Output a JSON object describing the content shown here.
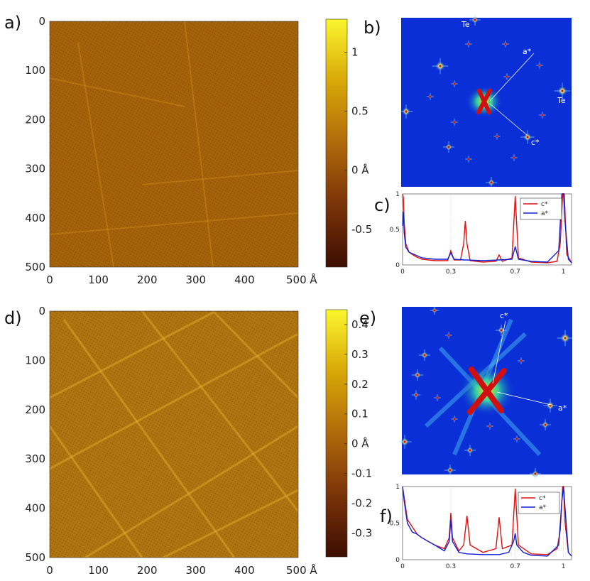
{
  "panels": {
    "a": {
      "label": "a)",
      "y_ticks": [
        "0",
        "100",
        "200",
        "300",
        "400",
        "500"
      ],
      "x_ticks": [
        "0",
        "100",
        "200",
        "300",
        "400",
        "500 Å"
      ],
      "colorbar_ticks": [
        "1",
        "0.5",
        "0 Å",
        "-0.5"
      ],
      "colorbar_values": [
        1,
        0.5,
        0,
        -0.5
      ],
      "colorbar_range": [
        -0.82,
        1.28
      ]
    },
    "b": {
      "label": "b)",
      "annotations": [
        "Te",
        "a*",
        "Te",
        "c*"
      ]
    },
    "c": {
      "label": "c)",
      "x_ticks": [
        "0",
        "0.3",
        "0.7",
        "1"
      ],
      "y_ticks": [
        "1",
        "0.5",
        "0"
      ],
      "legend": [
        "c*",
        "a*"
      ]
    },
    "d": {
      "label": "d)",
      "y_ticks": [
        "0",
        "100",
        "200",
        "300",
        "400",
        "500"
      ],
      "x_ticks": [
        "0",
        "100",
        "200",
        "300",
        "400",
        "500 Å"
      ],
      "colorbar_ticks": [
        "0.4",
        "0.3",
        "0.2",
        "0.1",
        "0 Å",
        "-0.1",
        "-0.2",
        "-0.3"
      ],
      "colorbar_values": [
        0.4,
        0.3,
        0.2,
        0.1,
        0,
        -0.1,
        -0.2,
        -0.3
      ],
      "colorbar_range": [
        -0.38,
        0.45
      ]
    },
    "e": {
      "label": "e)",
      "annotations": [
        "c*",
        "a*"
      ]
    },
    "f": {
      "label": "f)",
      "x_ticks": [
        "0",
        "0.3",
        "0.7",
        "1"
      ],
      "y_ticks": [
        "1",
        "0.5",
        "0"
      ],
      "legend": [
        "c*",
        "a*"
      ]
    }
  },
  "colors": {
    "series_c": "#e01010",
    "series_a": "#1020d0",
    "fft_bg": "#0a2fd6",
    "stm_mid": "#a8650c"
  },
  "chart_data": [
    {
      "type": "line",
      "panel": "c",
      "xlim": [
        0,
        1.05
      ],
      "ylim": [
        0,
        1
      ],
      "grid_x": [
        0.3,
        0.7,
        1
      ],
      "series": [
        {
          "name": "c*",
          "x": [
            0.0,
            0.005,
            0.01,
            0.02,
            0.04,
            0.08,
            0.12,
            0.2,
            0.28,
            0.3,
            0.32,
            0.36,
            0.38,
            0.39,
            0.4,
            0.42,
            0.5,
            0.58,
            0.6,
            0.62,
            0.68,
            0.7,
            0.72,
            0.8,
            0.9,
            0.96,
            0.98,
            0.995,
            1.0,
            1.005,
            1.02,
            1.05
          ],
          "y": [
            1.0,
            0.95,
            0.6,
            0.3,
            0.18,
            0.12,
            0.08,
            0.06,
            0.06,
            0.2,
            0.07,
            0.07,
            0.3,
            0.62,
            0.3,
            0.06,
            0.04,
            0.05,
            0.14,
            0.05,
            0.1,
            0.97,
            0.1,
            0.04,
            0.03,
            0.05,
            0.3,
            1.0,
            1.0,
            1.0,
            0.15,
            0.03
          ]
        },
        {
          "name": "a*",
          "x": [
            0.0,
            0.005,
            0.01,
            0.02,
            0.04,
            0.08,
            0.12,
            0.2,
            0.28,
            0.3,
            0.32,
            0.38,
            0.4,
            0.5,
            0.6,
            0.68,
            0.7,
            0.72,
            0.8,
            0.9,
            0.97,
            0.99,
            1.0,
            1.01,
            1.03,
            1.05
          ],
          "y": [
            0.55,
            0.75,
            0.45,
            0.25,
            0.18,
            0.14,
            0.1,
            0.08,
            0.08,
            0.17,
            0.08,
            0.07,
            0.07,
            0.06,
            0.07,
            0.08,
            0.26,
            0.08,
            0.05,
            0.04,
            0.2,
            1.0,
            1.0,
            0.6,
            0.08,
            0.03
          ]
        }
      ]
    },
    {
      "type": "line",
      "panel": "f",
      "xlim": [
        0,
        1.05
      ],
      "ylim": [
        0,
        1
      ],
      "grid_x": [
        0.3,
        0.7,
        1
      ],
      "series": [
        {
          "name": "c*",
          "x": [
            0.0,
            0.01,
            0.03,
            0.06,
            0.09,
            0.12,
            0.16,
            0.2,
            0.26,
            0.29,
            0.3,
            0.31,
            0.35,
            0.38,
            0.4,
            0.42,
            0.5,
            0.58,
            0.6,
            0.62,
            0.68,
            0.7,
            0.72,
            0.8,
            0.9,
            0.96,
            0.98,
            0.995,
            1.0,
            1.01,
            1.03,
            1.05
          ],
          "y": [
            1.0,
            0.85,
            0.55,
            0.45,
            0.35,
            0.3,
            0.25,
            0.2,
            0.15,
            0.3,
            0.64,
            0.3,
            0.12,
            0.2,
            0.6,
            0.2,
            0.1,
            0.15,
            0.58,
            0.15,
            0.2,
            0.97,
            0.2,
            0.08,
            0.07,
            0.15,
            0.4,
            1.0,
            1.0,
            0.5,
            0.1,
            0.05
          ]
        },
        {
          "name": "a*",
          "x": [
            0.0,
            0.01,
            0.03,
            0.06,
            0.09,
            0.12,
            0.16,
            0.2,
            0.26,
            0.29,
            0.3,
            0.31,
            0.35,
            0.4,
            0.5,
            0.6,
            0.66,
            0.69,
            0.7,
            0.71,
            0.75,
            0.8,
            0.9,
            0.97,
            0.99,
            1.0,
            1.01,
            1.03,
            1.05
          ],
          "y": [
            1.0,
            0.8,
            0.5,
            0.38,
            0.35,
            0.3,
            0.25,
            0.2,
            0.12,
            0.25,
            0.55,
            0.25,
            0.1,
            0.08,
            0.07,
            0.07,
            0.1,
            0.25,
            0.36,
            0.2,
            0.1,
            0.06,
            0.05,
            0.2,
            0.8,
            1.0,
            0.7,
            0.1,
            0.05
          ]
        }
      ]
    }
  ]
}
